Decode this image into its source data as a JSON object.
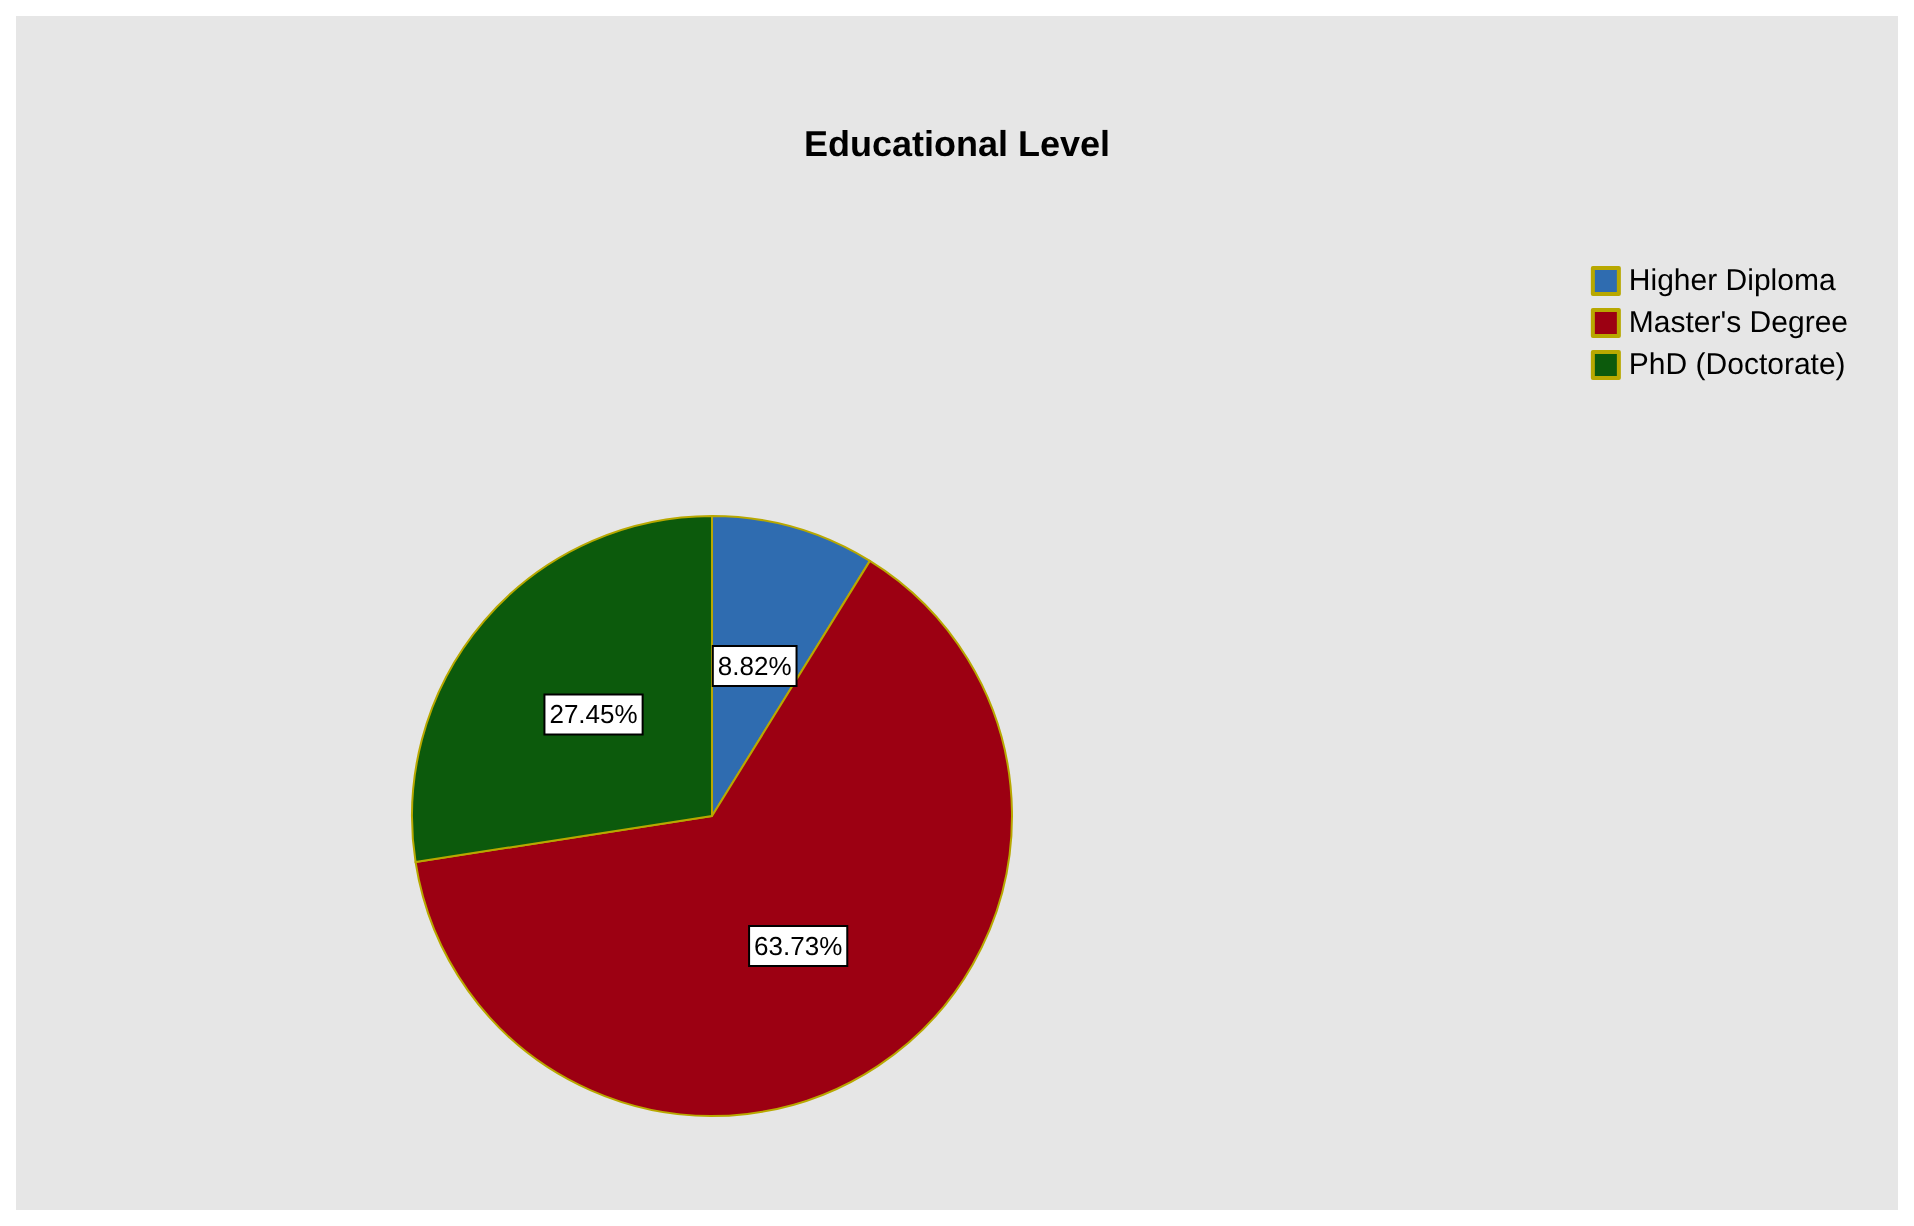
{
  "chart_data": {
    "type": "pie",
    "title": "Educational Level",
    "categories": [
      "Higher Diploma",
      "Master's Degree",
      "PhD (Doctorate)"
    ],
    "values": [
      8.82,
      63.73,
      27.45
    ],
    "value_labels": [
      "8.82%",
      "63.73%",
      "27.45%"
    ],
    "colors": [
      "#2f6cb0",
      "#9c0012",
      "#0c5a0c"
    ],
    "legend": "top right"
  }
}
